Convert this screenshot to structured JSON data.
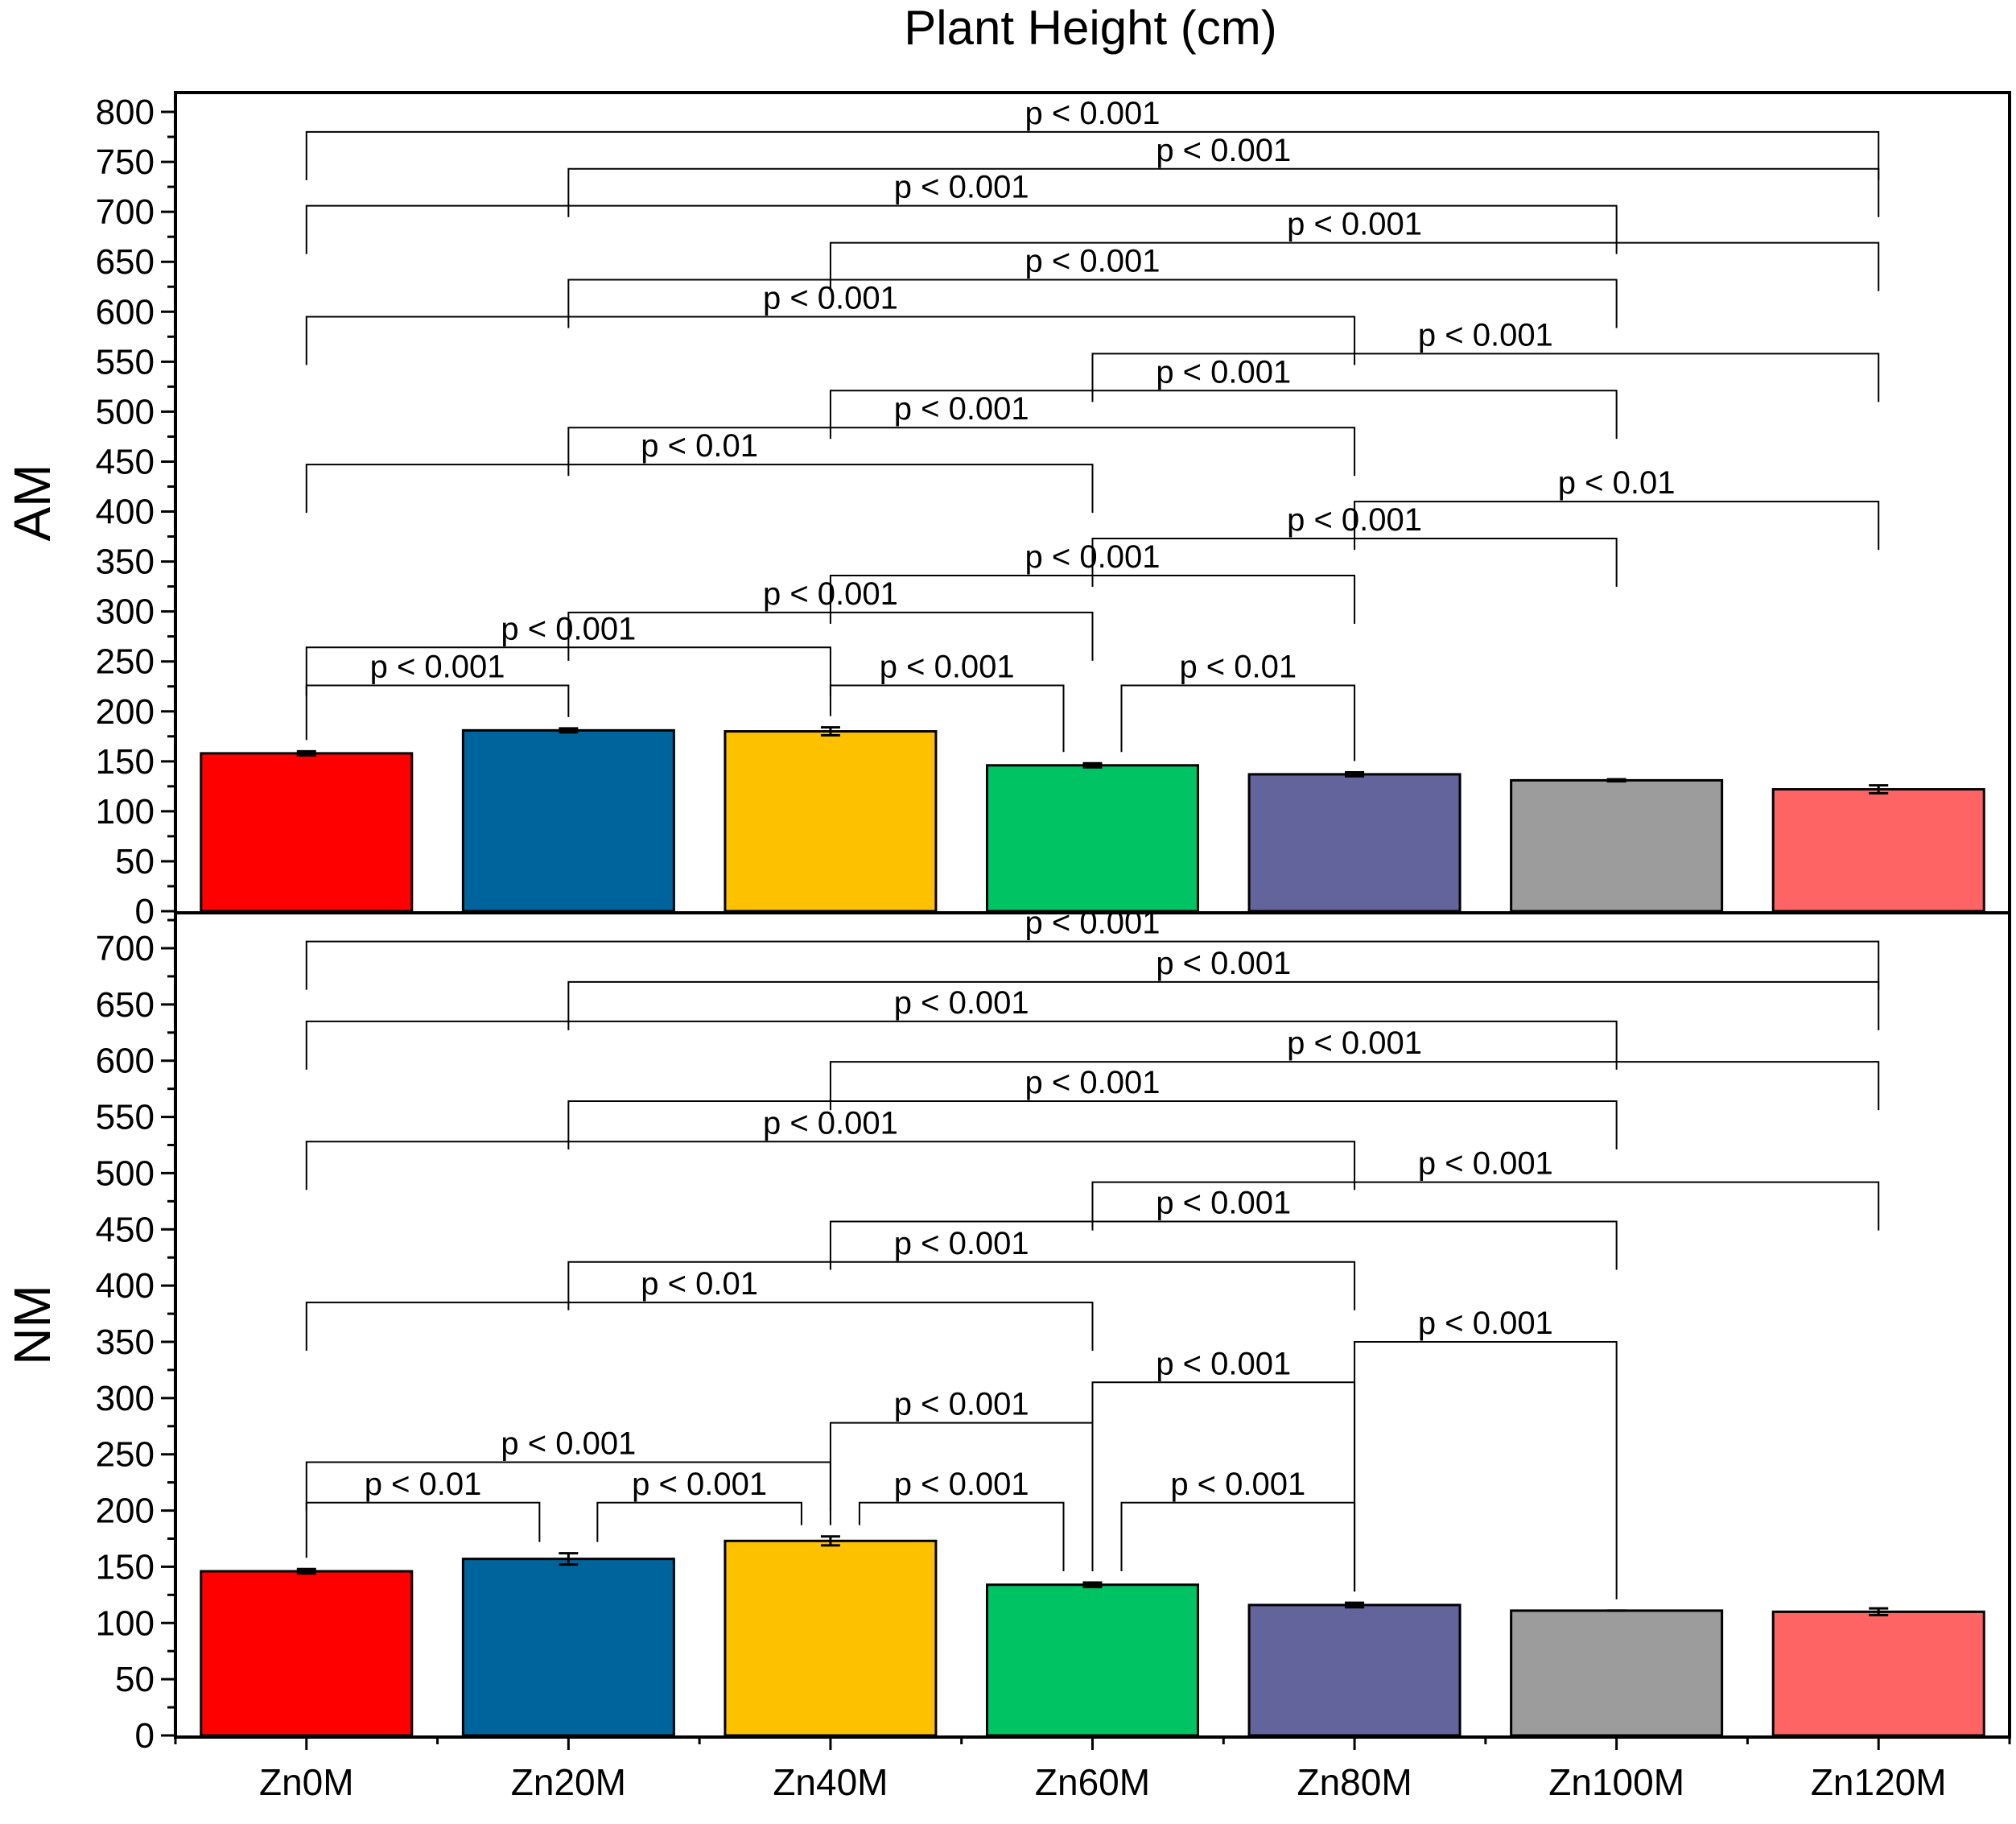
{
  "chart_data": {
    "type": "bar",
    "title": "Plant Height (cm)",
    "categories": [
      "Zn0M",
      "Zn20M",
      "Zn40M",
      "Zn60M",
      "Zn80M",
      "Zn100M",
      "Zn120M"
    ],
    "colors": [
      "#ff0000",
      "#00649c",
      "#fdc100",
      "#00c464",
      "#64649c",
      "#9c9c9c",
      "#ff6464"
    ],
    "panels": [
      {
        "ylabel": "AM",
        "ylim": [
          0,
          800
        ],
        "ticks": [
          0,
          50,
          100,
          150,
          200,
          250,
          300,
          350,
          400,
          450,
          500,
          550,
          600,
          650,
          700,
          750,
          800
        ],
        "values": [
          158,
          181,
          180,
          146,
          137,
          131,
          122
        ],
        "errors": [
          2,
          2,
          4,
          2,
          2,
          1,
          4
        ],
        "comparisons": [
          {
            "a": 0,
            "b": 6,
            "label": "p < 0.001",
            "y": 780
          },
          {
            "a": 1,
            "b": 6,
            "label": "p < 0.001",
            "y": 743
          },
          {
            "a": 0,
            "b": 5,
            "label": "p < 0.001",
            "y": 706
          },
          {
            "a": 2,
            "b": 6,
            "label": "p < 0.001",
            "y": 669
          },
          {
            "a": 1,
            "b": 5,
            "label": "p < 0.001",
            "y": 632
          },
          {
            "a": 0,
            "b": 4,
            "label": "p < 0.001",
            "y": 595
          },
          {
            "a": 3,
            "b": 6,
            "label": "p < 0.001",
            "y": 558
          },
          {
            "a": 2,
            "b": 5,
            "label": "p < 0.001",
            "y": 521
          },
          {
            "a": 1,
            "b": 4,
            "label": "p < 0.001",
            "y": 484
          },
          {
            "a": 0,
            "b": 3,
            "label": "p < 0.01",
            "y": 447
          },
          {
            "a": 4,
            "b": 6,
            "label": "p < 0.01",
            "y": 410
          },
          {
            "a": 3,
            "b": 5,
            "label": "p < 0.001",
            "y": 373
          },
          {
            "a": 2,
            "b": 4,
            "label": "p < 0.001",
            "y": 336
          },
          {
            "a": 1,
            "b": 3,
            "label": "p < 0.001",
            "y": 299
          },
          {
            "a": 0,
            "b": 2,
            "label": "p < 0.001",
            "y": 264
          },
          {
            "a": 0,
            "b": 1,
            "label": "p < 0.001",
            "y": 226
          },
          {
            "a": 2,
            "b": 3,
            "label": "p < 0.001",
            "y": 226
          },
          {
            "a": 3,
            "b": 4,
            "label": "p < 0.01",
            "y": 226
          }
        ]
      },
      {
        "ylabel": "NM",
        "ylim": [
          0,
          740
        ],
        "ticks": [
          0,
          50,
          100,
          150,
          200,
          250,
          300,
          350,
          400,
          450,
          500,
          550,
          600,
          650,
          700
        ],
        "values": [
          146,
          157,
          173,
          134,
          116,
          111,
          110
        ],
        "errors": [
          2,
          5,
          4,
          2,
          2,
          0,
          3
        ],
        "comparisons": [
          {
            "a": 0,
            "b": 6,
            "label": "p < 0.001",
            "y": 706
          },
          {
            "a": 1,
            "b": 6,
            "label": "p < 0.001",
            "y": 670
          },
          {
            "a": 0,
            "b": 5,
            "label": "p < 0.001",
            "y": 635
          },
          {
            "a": 2,
            "b": 6,
            "label": "p < 0.001",
            "y": 599
          },
          {
            "a": 1,
            "b": 5,
            "label": "p < 0.001",
            "y": 564
          },
          {
            "a": 0,
            "b": 4,
            "label": "p < 0.001",
            "y": 528
          },
          {
            "a": 3,
            "b": 6,
            "label": "p < 0.001",
            "y": 492
          },
          {
            "a": 2,
            "b": 5,
            "label": "p < 0.001",
            "y": 457
          },
          {
            "a": 1,
            "b": 4,
            "label": "p < 0.001",
            "y": 421
          },
          {
            "a": 0,
            "b": 3,
            "label": "p < 0.01",
            "y": 385
          },
          {
            "a": 4,
            "b": 5,
            "label": "p < 0.001",
            "y": 350
          },
          {
            "a": 3,
            "b": 4,
            "label": "p < 0.001",
            "y": 314
          },
          {
            "a": 2,
            "b": 3,
            "label": "p < 0.001",
            "y": 278
          },
          {
            "a": 0,
            "b": 2,
            "label": "p < 0.001",
            "y": 243
          },
          {
            "a": 0,
            "b": 1,
            "label": "p < 0.01",
            "y": 207
          },
          {
            "a": 1,
            "b": 2,
            "label": "p < 0.001",
            "y": 207
          },
          {
            "a": 2,
            "b": 3,
            "label": "p < 0.001",
            "y": 207
          },
          {
            "a": 3,
            "b": 4,
            "label": "p < 0.001",
            "y": 207
          }
        ]
      }
    ]
  }
}
